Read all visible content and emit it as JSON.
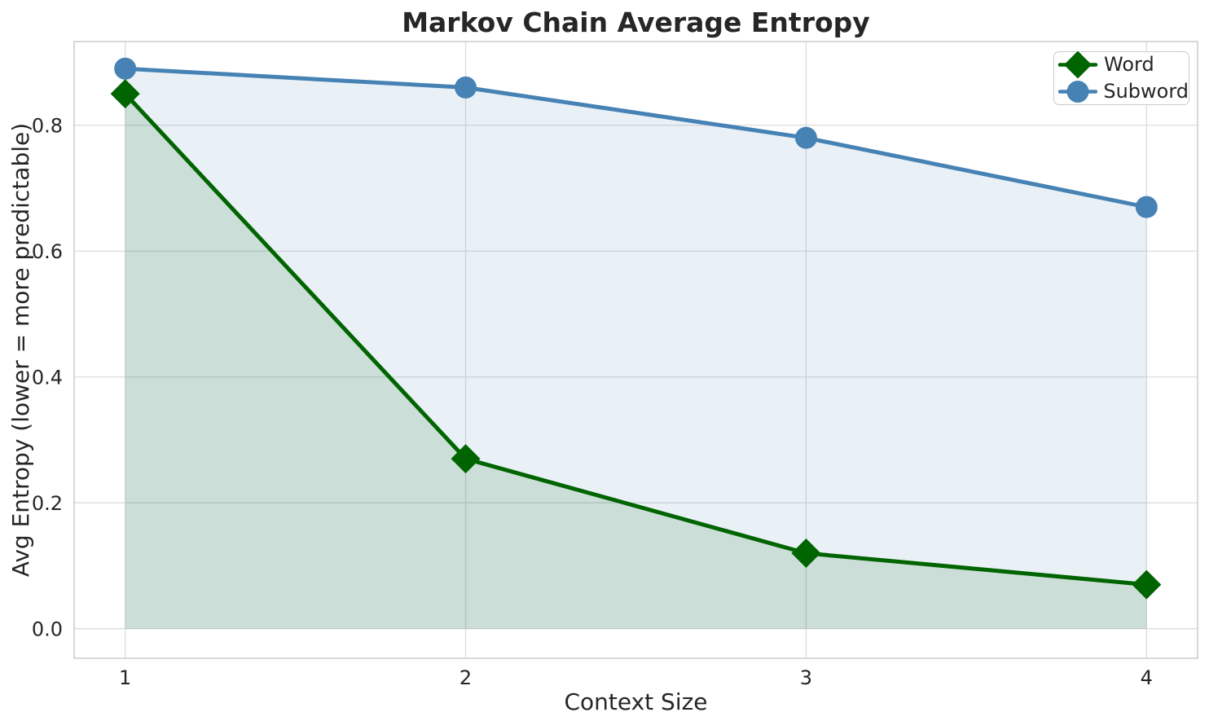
{
  "chart_data": {
    "type": "line",
    "title": "Markov Chain Average Entropy",
    "xlabel": "Context Size",
    "ylabel": "Avg Entropy (lower = more predictable)",
    "x": [
      1,
      2,
      3,
      4
    ],
    "x_tick_labels": [
      "1",
      "2",
      "3",
      "4"
    ],
    "y_ticks": [
      0.0,
      0.2,
      0.4,
      0.6,
      0.8
    ],
    "y_tick_labels": [
      "0.0",
      "0.2",
      "0.4",
      "0.6",
      "0.8"
    ],
    "xlim": [
      0.85,
      4.15
    ],
    "ylim": [
      -0.047,
      0.933
    ],
    "grid": true,
    "legend_position": "upper right",
    "series": [
      {
        "name": "Word",
        "marker": "diamond",
        "color": "#006400",
        "fill_to_zero": true,
        "fill_opacity": 0.12,
        "values": [
          0.85,
          0.27,
          0.12,
          0.07
        ]
      },
      {
        "name": "Subword",
        "marker": "circle",
        "color": "#4682b4",
        "fill_to_zero": true,
        "fill_opacity": 0.12,
        "values": [
          0.89,
          0.86,
          0.78,
          0.67
        ]
      }
    ]
  },
  "style": {
    "background": "#ffffff",
    "grid_color": "#dcdcdc",
    "spine_color": "#cccccc",
    "text_color": "#262626",
    "line_width": 5
  }
}
